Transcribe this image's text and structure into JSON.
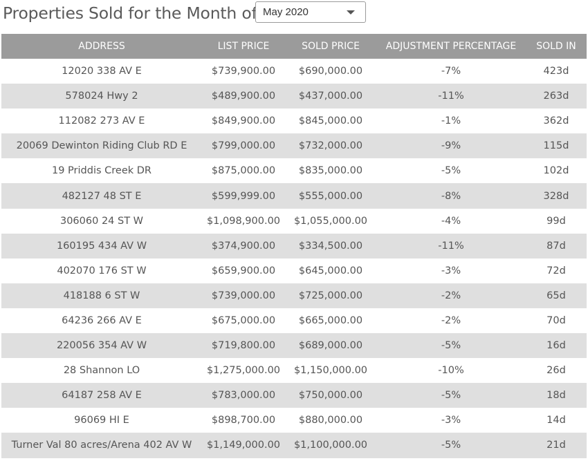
{
  "header": {
    "title": "Properties Sold for the Month of",
    "month_select": {
      "selected": "May 2020"
    }
  },
  "table": {
    "columns": [
      "ADDRESS",
      "LIST PRICE",
      "SOLD PRICE",
      "ADJUSTMENT PERCENTAGE",
      "SOLD IN"
    ],
    "rows": [
      {
        "address": "12020 338 AV E",
        "list_price": "$739,900.00",
        "sold_price": "$690,000.00",
        "adjustment": "-7%",
        "sold_in": "423d"
      },
      {
        "address": "578024 Hwy 2",
        "list_price": "$489,900.00",
        "sold_price": "$437,000.00",
        "adjustment": "-11%",
        "sold_in": "263d"
      },
      {
        "address": "112082 273 AV E",
        "list_price": "$849,900.00",
        "sold_price": "$845,000.00",
        "adjustment": "-1%",
        "sold_in": "362d"
      },
      {
        "address": "20069 Dewinton Riding Club RD E",
        "list_price": "$799,000.00",
        "sold_price": "$732,000.00",
        "adjustment": "-9%",
        "sold_in": "115d"
      },
      {
        "address": "19 Priddis Creek DR",
        "list_price": "$875,000.00",
        "sold_price": "$835,000.00",
        "adjustment": "-5%",
        "sold_in": "102d"
      },
      {
        "address": "482127 48 ST E",
        "list_price": "$599,999.00",
        "sold_price": "$555,000.00",
        "adjustment": "-8%",
        "sold_in": "328d"
      },
      {
        "address": "306060 24 ST W",
        "list_price": "$1,098,900.00",
        "sold_price": "$1,055,000.00",
        "adjustment": "-4%",
        "sold_in": "99d"
      },
      {
        "address": "160195 434 AV W",
        "list_price": "$374,900.00",
        "sold_price": "$334,500.00",
        "adjustment": "-11%",
        "sold_in": "87d"
      },
      {
        "address": "402070 176 ST W",
        "list_price": "$659,900.00",
        "sold_price": "$645,000.00",
        "adjustment": "-3%",
        "sold_in": "72d"
      },
      {
        "address": "418188 6 ST W",
        "list_price": "$739,000.00",
        "sold_price": "$725,000.00",
        "adjustment": "-2%",
        "sold_in": "65d"
      },
      {
        "address": "64236 266 AV E",
        "list_price": "$675,000.00",
        "sold_price": "$665,000.00",
        "adjustment": "-2%",
        "sold_in": "70d"
      },
      {
        "address": "220056 354 AV W",
        "list_price": "$719,800.00",
        "sold_price": "$689,000.00",
        "adjustment": "-5%",
        "sold_in": "16d"
      },
      {
        "address": "28 Shannon LO",
        "list_price": "$1,275,000.00",
        "sold_price": "$1,150,000.00",
        "adjustment": "-10%",
        "sold_in": "26d"
      },
      {
        "address": "64187 258 AV E",
        "list_price": "$783,000.00",
        "sold_price": "$750,000.00",
        "adjustment": "-5%",
        "sold_in": "18d"
      },
      {
        "address": "96069 HI E",
        "list_price": "$898,700.00",
        "sold_price": "$880,000.00",
        "adjustment": "-3%",
        "sold_in": "14d"
      },
      {
        "address": "Turner Val 80 acres/Arena 402 AV W",
        "list_price": "$1,149,000.00",
        "sold_price": "$1,100,000.00",
        "adjustment": "-5%",
        "sold_in": "21d"
      }
    ]
  },
  "colors": {
    "header_bg": "#9b9b9b",
    "alt_row_bg": "#dfdfdf",
    "text": "#555555"
  }
}
